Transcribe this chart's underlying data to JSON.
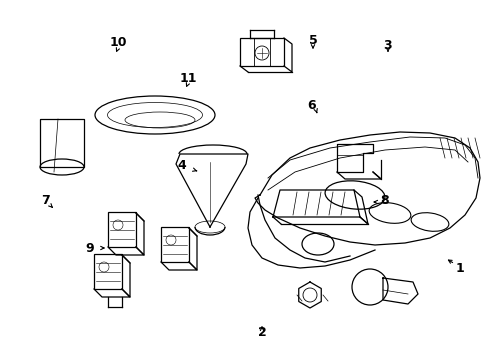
{
  "bg_color": "#ffffff",
  "line_color": "#000000",
  "fig_width": 4.89,
  "fig_height": 3.6,
  "dpi": 100,
  "xlim": [
    0,
    489
  ],
  "ylim": [
    0,
    360
  ]
}
